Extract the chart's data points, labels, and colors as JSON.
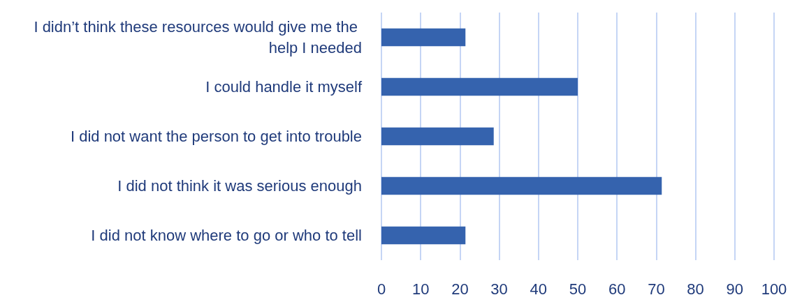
{
  "chart_data": {
    "type": "bar",
    "orientation": "horizontal",
    "categories": [
      "I didn’t think these resources would give me the help I needed",
      "I could handle it myself",
      "I did not want the person to get into trouble",
      "I did not think it was serious enough",
      "I did not know where to go or who to tell"
    ],
    "values": [
      21.4,
      50,
      28.6,
      71.4,
      21.4
    ],
    "color": "#3563ae",
    "xlim": [
      0,
      100
    ],
    "xticks": [
      0,
      10,
      20,
      30,
      40,
      50,
      60,
      70,
      80,
      90,
      100
    ],
    "grid": "x"
  }
}
